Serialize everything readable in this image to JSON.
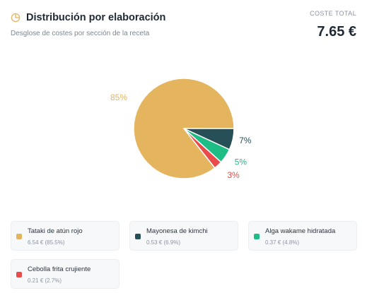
{
  "header": {
    "title": "Distribución por elaboración",
    "subtitle": "Desglose de costes por sección de la receta",
    "total_label": "COSTE TOTAL",
    "total_value": "7.65 €",
    "icon": "pie-chart-icon"
  },
  "colors": {
    "accent": "#e5b45f",
    "tataki": "#e5b45f",
    "mayonesa": "#274f57",
    "alga": "#1fbd86",
    "cebolla": "#e94b4b"
  },
  "chart_data": {
    "type": "pie",
    "title": "",
    "slices": [
      {
        "name": "Tataki de atún rojo",
        "value": 6.54,
        "percent": 85.5,
        "label": "85%",
        "color": "#e5b45f"
      },
      {
        "name": "Mayonesa de kimchi",
        "value": 0.53,
        "percent": 6.9,
        "label": "7%",
        "color": "#274f57"
      },
      {
        "name": "Alga wakame hidratada",
        "value": 0.37,
        "percent": 4.8,
        "label": "5%",
        "color": "#1fbd86"
      },
      {
        "name": "Cebolla frita crujiente",
        "value": 0.21,
        "percent": 2.7,
        "label": "3%",
        "color": "#e94b4b"
      }
    ]
  },
  "legend": [
    {
      "name": "Tataki de atún rojo",
      "detail": "6.54 € (85.5%)",
      "color": "#e5b45f"
    },
    {
      "name": "Mayonesa de kimchi",
      "detail": "0.53 € (6.9%)",
      "color": "#274f57"
    },
    {
      "name": "Alga wakame hidratada",
      "detail": "0.37 € (4.8%)",
      "color": "#1fbd86"
    },
    {
      "name": "Cebolla frita crujiente",
      "detail": "0.21 € (2.7%)",
      "color": "#e94b4b"
    }
  ]
}
